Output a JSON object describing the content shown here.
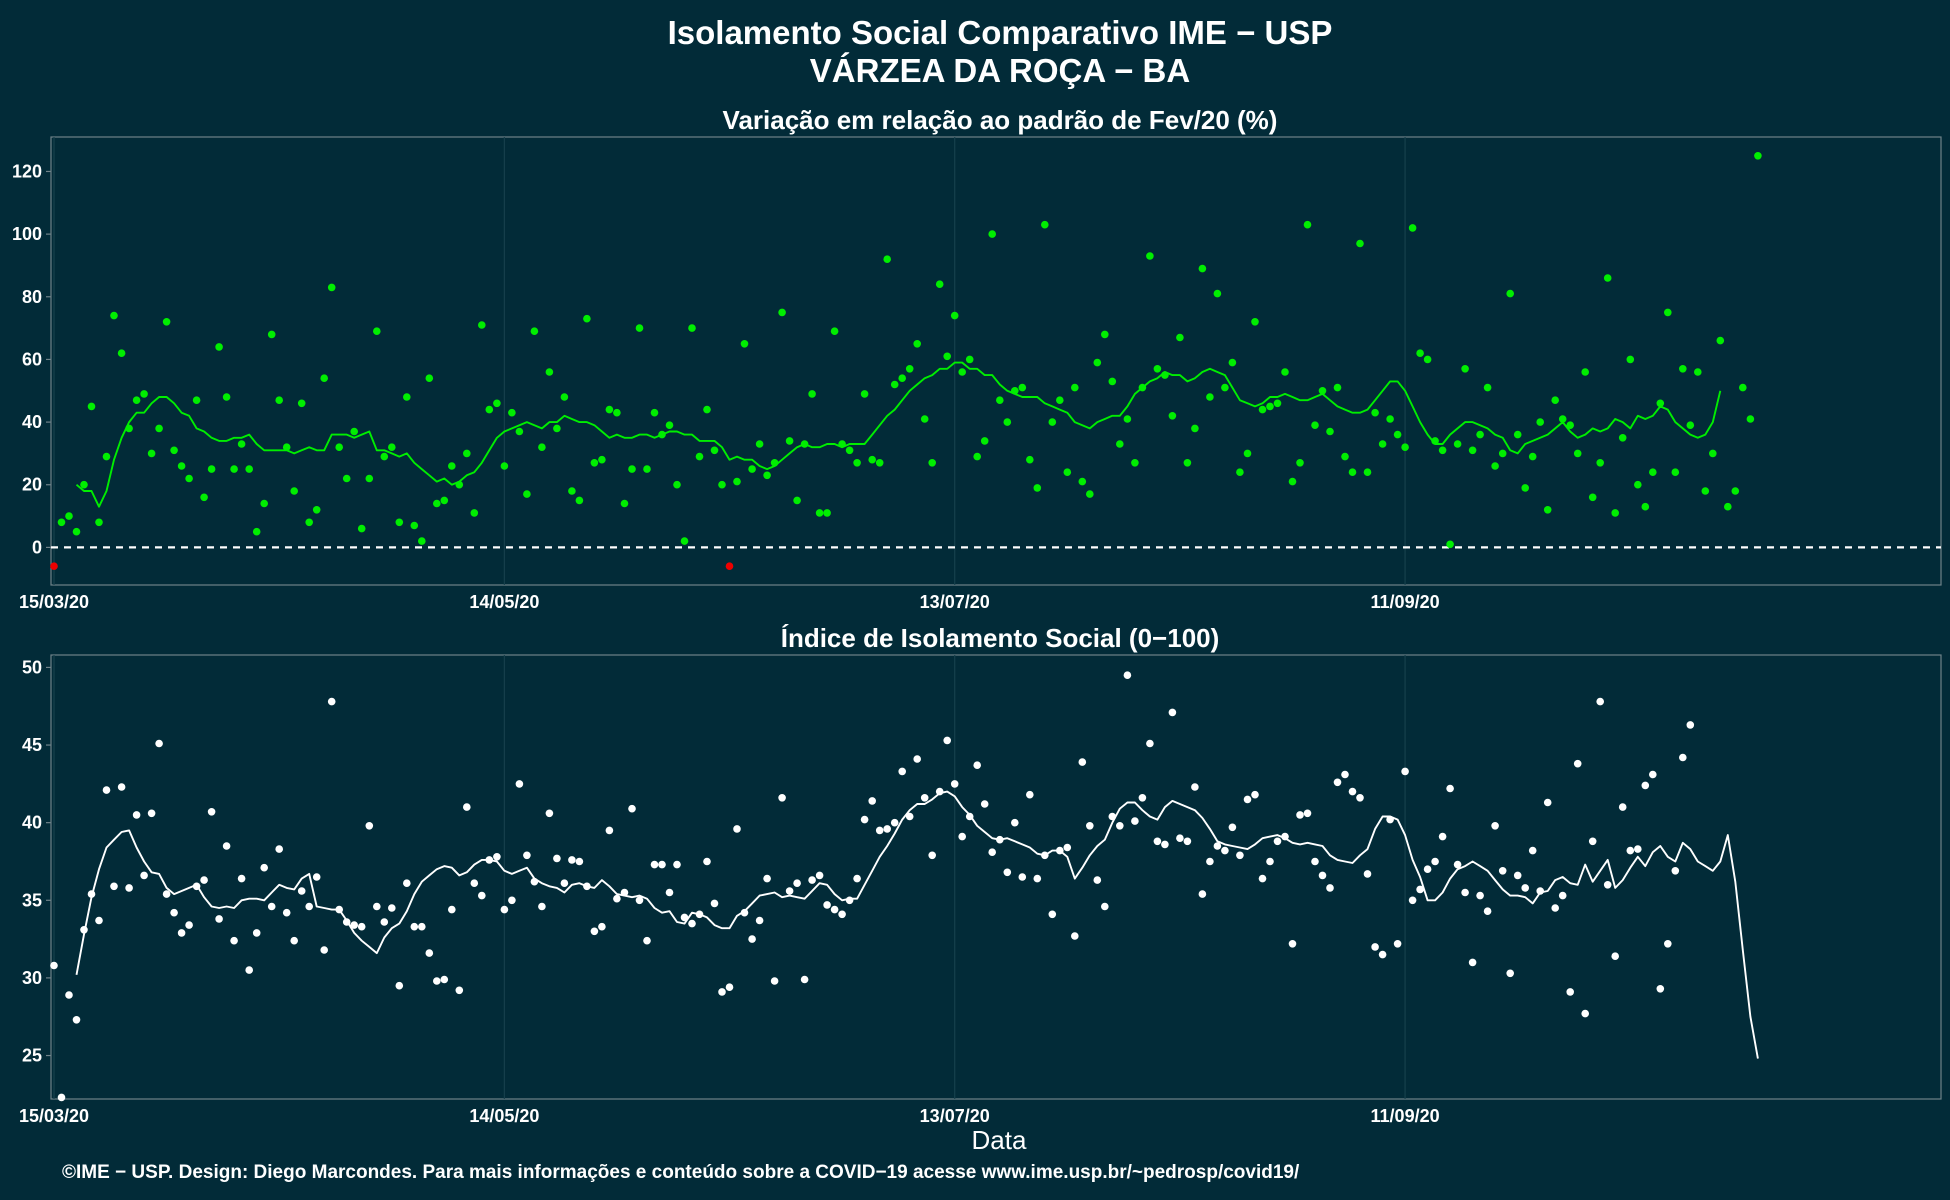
{
  "header": {
    "title": "Isolamento Social Comparativo IME − USP",
    "subtitle": "VÁRZEA DA ROÇA − BA"
  },
  "xaxis": {
    "tick_labels": [
      "15/03/20",
      "14/05/20",
      "13/07/20",
      "11/09/20"
    ],
    "label": "Data"
  },
  "footer": {
    "credit": "©IME − USP. Design: Diego Marcondes. Para mais informações e conteúdo sobre a COVID−19 acesse www.ime.usp.br/~pedrosp/covid19/"
  },
  "colors": {
    "background": "#022b38",
    "panel_border": "#6f8289",
    "gridline": "#16404c",
    "variation_series": "#00ee00",
    "negative_points": "#ee0000",
    "index_series": "#ffffff",
    "baseline": "#ffffff"
  },
  "chart_data": [
    {
      "type": "scatter",
      "title": "Variação em relação ao padrão de Fev/20 (%)",
      "xlabel": "",
      "ylabel": "",
      "x_start": "15/03/20",
      "x_end": "21/11/20",
      "xlim_days": [
        0,
        251
      ],
      "ylim": [
        -12,
        131
      ],
      "yticks": [
        0,
        20,
        40,
        60,
        80,
        100,
        120
      ],
      "xtick_days": [
        0,
        60,
        120,
        180
      ],
      "reference_line": 0,
      "grid": true,
      "legend": "none",
      "series": [
        {
          "points": [
            -6,
            8,
            10,
            5,
            20,
            45,
            8,
            29,
            74,
            62,
            38,
            47,
            49,
            30,
            38,
            72,
            31,
            26,
            22,
            47,
            16,
            25,
            64,
            48,
            25,
            33,
            25,
            5,
            14,
            68,
            47,
            32,
            18,
            46,
            8,
            12,
            54,
            83,
            32,
            22,
            37,
            6,
            22,
            69,
            29,
            32,
            8,
            48,
            7,
            2,
            54,
            14,
            15,
            26,
            20,
            30,
            11,
            71,
            44,
            46,
            26,
            43,
            37,
            17,
            69,
            32,
            56,
            38,
            48,
            18,
            15,
            73,
            27,
            28,
            44,
            43,
            14,
            25,
            70,
            25,
            43,
            36,
            39,
            20,
            2,
            70,
            29,
            44,
            31,
            20,
            -6,
            21,
            65,
            25,
            33,
            23,
            27,
            75,
            34,
            15,
            33,
            49,
            11,
            11,
            69,
            33,
            31,
            27,
            49,
            28,
            27,
            92,
            52,
            54,
            57,
            65,
            41,
            27,
            84,
            61,
            74,
            56,
            60,
            29,
            34,
            100,
            47,
            40,
            50,
            51,
            28,
            19,
            103,
            40,
            47,
            24,
            51,
            21,
            17,
            59,
            68,
            53,
            33,
            41,
            27,
            51,
            93,
            57,
            55,
            42,
            67,
            27,
            38,
            89,
            48,
            81,
            51,
            59,
            24,
            30,
            72,
            44,
            45,
            46,
            56,
            21,
            27,
            103,
            39,
            50,
            37,
            51,
            29,
            24,
            97,
            24,
            43,
            33,
            41,
            36,
            32,
            102,
            62,
            60,
            34,
            31,
            1,
            33,
            57,
            31,
            36,
            51,
            26,
            30,
            81,
            36,
            19,
            29,
            40,
            12,
            47,
            41,
            39,
            30,
            56,
            16,
            27,
            86,
            11,
            35,
            60,
            20,
            13,
            24,
            46,
            75,
            24,
            57,
            39,
            56,
            18,
            30,
            66,
            13,
            18,
            51,
            41,
            125
          ]
        },
        {
          "name_hint": "moving average",
          "values": [
            20,
            18,
            18,
            13,
            18,
            28,
            35,
            40,
            43,
            43,
            46,
            48,
            48,
            46,
            43,
            42,
            38,
            37,
            35,
            34,
            34,
            35,
            35,
            36,
            33,
            31,
            31,
            31,
            31,
            30,
            31,
            32,
            31,
            31,
            36,
            36,
            36,
            35,
            36,
            37,
            31,
            31,
            30,
            29,
            30,
            27,
            25,
            23,
            21,
            22,
            20,
            21,
            23,
            24,
            27,
            31,
            35,
            37,
            38,
            39,
            40,
            39,
            38,
            40,
            40,
            42,
            41,
            40,
            40,
            39,
            37,
            35,
            36,
            35,
            35,
            36,
            36,
            35,
            36,
            37,
            37,
            36,
            36,
            34,
            34,
            34,
            32,
            28,
            29,
            28,
            28,
            26,
            25,
            26,
            28,
            30,
            32,
            33,
            32,
            32,
            33,
            33,
            32,
            33,
            33,
            33,
            36,
            39,
            42,
            44,
            47,
            50,
            52,
            54,
            55,
            57,
            57,
            59,
            59,
            57,
            57,
            55,
            55,
            52,
            50,
            49,
            48,
            48,
            48,
            46,
            45,
            44,
            43,
            40,
            39,
            38,
            40,
            41,
            42,
            42,
            45,
            49,
            51,
            53,
            54,
            56,
            55,
            55,
            53,
            54,
            56,
            57,
            56,
            55,
            51,
            47,
            46,
            45,
            46,
            48,
            48,
            49,
            48,
            47,
            47,
            48,
            49,
            47,
            45,
            44,
            43,
            43,
            44,
            47,
            50,
            53,
            53,
            50,
            45,
            40,
            36,
            33,
            33,
            36,
            38,
            40,
            40,
            39,
            38,
            36,
            35,
            31,
            30,
            33,
            34,
            35,
            36,
            38,
            40,
            37,
            35,
            36,
            38,
            37,
            38,
            41,
            40,
            38,
            42,
            41,
            42,
            45,
            44,
            40,
            38,
            36,
            35,
            36,
            40,
            50
          ]
        }
      ]
    },
    {
      "type": "scatter",
      "title": "Índice de Isolamento Social (0−100)",
      "xlabel": "Data",
      "ylabel": "",
      "x_start": "15/03/20",
      "x_end": "21/11/20",
      "xlim_days": [
        0,
        251
      ],
      "ylim": [
        22.2,
        50.8
      ],
      "yticks": [
        25,
        30,
        35,
        40,
        45,
        50
      ],
      "xtick_days": [
        0,
        60,
        120,
        180
      ],
      "grid": true,
      "legend": "none",
      "series": [
        {
          "points": [
            30.8,
            22.3,
            28.9,
            27.3,
            33.1,
            35.4,
            33.7,
            42.1,
            35.9,
            42.3,
            35.8,
            40.5,
            36.6,
            40.6,
            45.1,
            35.4,
            34.2,
            32.9,
            33.4,
            35.9,
            36.3,
            40.7,
            33.8,
            38.5,
            32.4,
            36.4,
            30.5,
            32.9,
            37.1,
            34.6,
            38.3,
            34.2,
            32.4,
            35.6,
            34.6,
            36.5,
            31.8,
            47.8,
            34.4,
            33.6,
            33.4,
            33.3,
            39.8,
            34.6,
            33.6,
            34.5,
            29.5,
            36.1,
            33.3,
            33.3,
            31.6,
            29.8,
            29.9,
            34.4,
            29.2,
            41.0,
            36.1,
            35.3,
            37.6,
            37.8,
            34.4,
            35.0,
            42.5,
            37.9,
            36.2,
            34.6,
            40.6,
            37.7,
            36.1,
            37.6,
            37.5,
            35.9,
            33.0,
            33.3,
            39.5,
            35.1,
            35.5,
            40.9,
            35.0,
            32.4,
            37.3,
            37.3,
            35.5,
            37.3,
            33.9,
            33.5,
            34.1,
            37.5,
            34.8,
            29.1,
            29.4,
            39.6,
            34.2,
            32.5,
            33.7,
            36.4,
            29.8,
            41.6,
            35.6,
            36.1,
            29.9,
            36.3,
            36.6,
            34.7,
            34.4,
            34.1,
            35.0,
            36.4,
            40.2,
            41.4,
            39.5,
            39.6,
            40.0,
            43.3,
            40.4,
            44.1,
            41.6,
            37.9,
            42.0,
            45.3,
            42.5,
            39.1,
            40.4,
            43.7,
            41.2,
            38.1,
            38.9,
            36.8,
            40.0,
            36.5,
            41.8,
            36.4,
            37.9,
            34.1,
            38.2,
            38.4,
            32.7,
            43.9,
            39.8,
            36.3,
            34.6,
            40.4,
            39.8,
            49.5,
            40.1,
            41.6,
            45.1,
            38.8,
            38.6,
            47.1,
            39.0,
            38.8,
            42.3,
            35.4,
            37.5,
            38.5,
            38.2,
            39.7,
            37.9,
            41.5,
            41.8,
            36.4,
            37.5,
            38.8,
            39.1,
            32.2,
            40.5,
            40.6,
            37.5,
            36.6,
            35.8,
            42.6,
            43.1,
            42.0,
            41.6,
            36.7,
            32.0,
            31.5,
            40.2,
            32.2,
            43.3,
            35.0,
            35.7,
            37.0,
            37.5,
            39.1,
            42.2,
            37.3,
            35.5,
            31.0,
            35.3,
            34.3,
            39.8,
            36.9,
            30.3,
            36.6,
            35.8,
            38.2,
            35.6,
            41.3,
            34.5,
            35.3,
            29.1,
            43.8,
            27.7,
            38.8,
            47.8,
            36.0,
            31.4,
            41.0,
            38.2,
            38.3,
            42.4,
            43.1,
            29.3,
            32.2,
            36.9,
            44.2,
            46.3
          ]
        },
        {
          "name_hint": "moving average",
          "values": [
            30.2,
            32.8,
            35.2,
            37.0,
            38.4,
            38.9,
            39.4,
            39.5,
            38.4,
            37.5,
            36.8,
            36.7,
            35.8,
            35.4,
            35.6,
            35.8,
            36.0,
            35.2,
            34.6,
            34.5,
            34.6,
            34.5,
            35.0,
            35.1,
            35.1,
            35.0,
            35.5,
            36.0,
            35.8,
            35.7,
            36.4,
            36.7,
            34.6,
            34.5,
            34.4,
            34.4,
            33.7,
            32.9,
            32.4,
            32.0,
            31.6,
            32.6,
            33.2,
            33.5,
            34.3,
            35.4,
            36.2,
            36.6,
            37.0,
            37.2,
            37.1,
            36.6,
            36.8,
            37.3,
            37.6,
            37.6,
            37.5,
            36.9,
            36.7,
            36.9,
            37.1,
            36.4,
            36.1,
            35.9,
            35.8,
            35.5,
            36.0,
            36.1,
            35.9,
            35.8,
            36.3,
            35.9,
            35.4,
            35.3,
            35.2,
            35.3,
            35.1,
            34.5,
            34.2,
            34.3,
            33.6,
            33.5,
            34.2,
            34.1,
            33.9,
            33.4,
            33.2,
            33.2,
            34.0,
            34.3,
            34.8,
            35.3,
            35.4,
            35.5,
            35.2,
            35.3,
            35.2,
            35.1,
            35.6,
            36.1,
            36.0,
            35.4,
            35.0,
            35.1,
            35.1,
            36.0,
            36.9,
            37.8,
            38.5,
            39.3,
            40.2,
            40.8,
            41.2,
            41.2,
            41.5,
            41.9,
            42.0,
            41.7,
            41.0,
            40.5,
            39.8,
            39.4,
            39.0,
            38.9,
            39.0,
            38.8,
            38.6,
            38.4,
            38.0,
            37.9,
            38.2,
            38.2,
            37.8,
            36.4,
            37.1,
            37.9,
            38.5,
            38.9,
            40.0,
            40.9,
            41.3,
            41.3,
            40.8,
            40.4,
            40.2,
            41.0,
            41.4,
            41.2,
            41.0,
            40.8,
            40.3,
            39.6,
            38.8,
            38.6,
            38.5,
            38.4,
            38.3,
            38.6,
            39.0,
            39.1,
            39.2,
            39.0,
            38.7,
            38.6,
            38.7,
            38.6,
            38.5,
            37.9,
            37.6,
            37.5,
            37.4,
            37.9,
            38.3,
            39.6,
            40.4,
            40.4,
            40.2,
            39.2,
            37.6,
            36.5,
            35.0,
            35.0,
            35.5,
            36.4,
            37.0,
            37.2,
            37.5,
            37.2,
            36.9,
            36.3,
            35.7,
            35.3,
            35.3,
            35.2,
            34.8,
            35.5,
            35.6,
            36.3,
            36.5,
            36.1,
            36.0,
            37.3,
            36.2,
            36.9,
            37.6,
            35.8,
            36.3,
            37.1,
            37.8,
            37.2,
            38.1,
            38.5,
            37.8,
            37.5,
            38.7,
            38.3,
            37.5,
            37.2,
            36.9,
            37.5,
            39.2,
            36.2,
            31.8,
            27.5,
            24.8
          ]
        }
      ]
    }
  ]
}
